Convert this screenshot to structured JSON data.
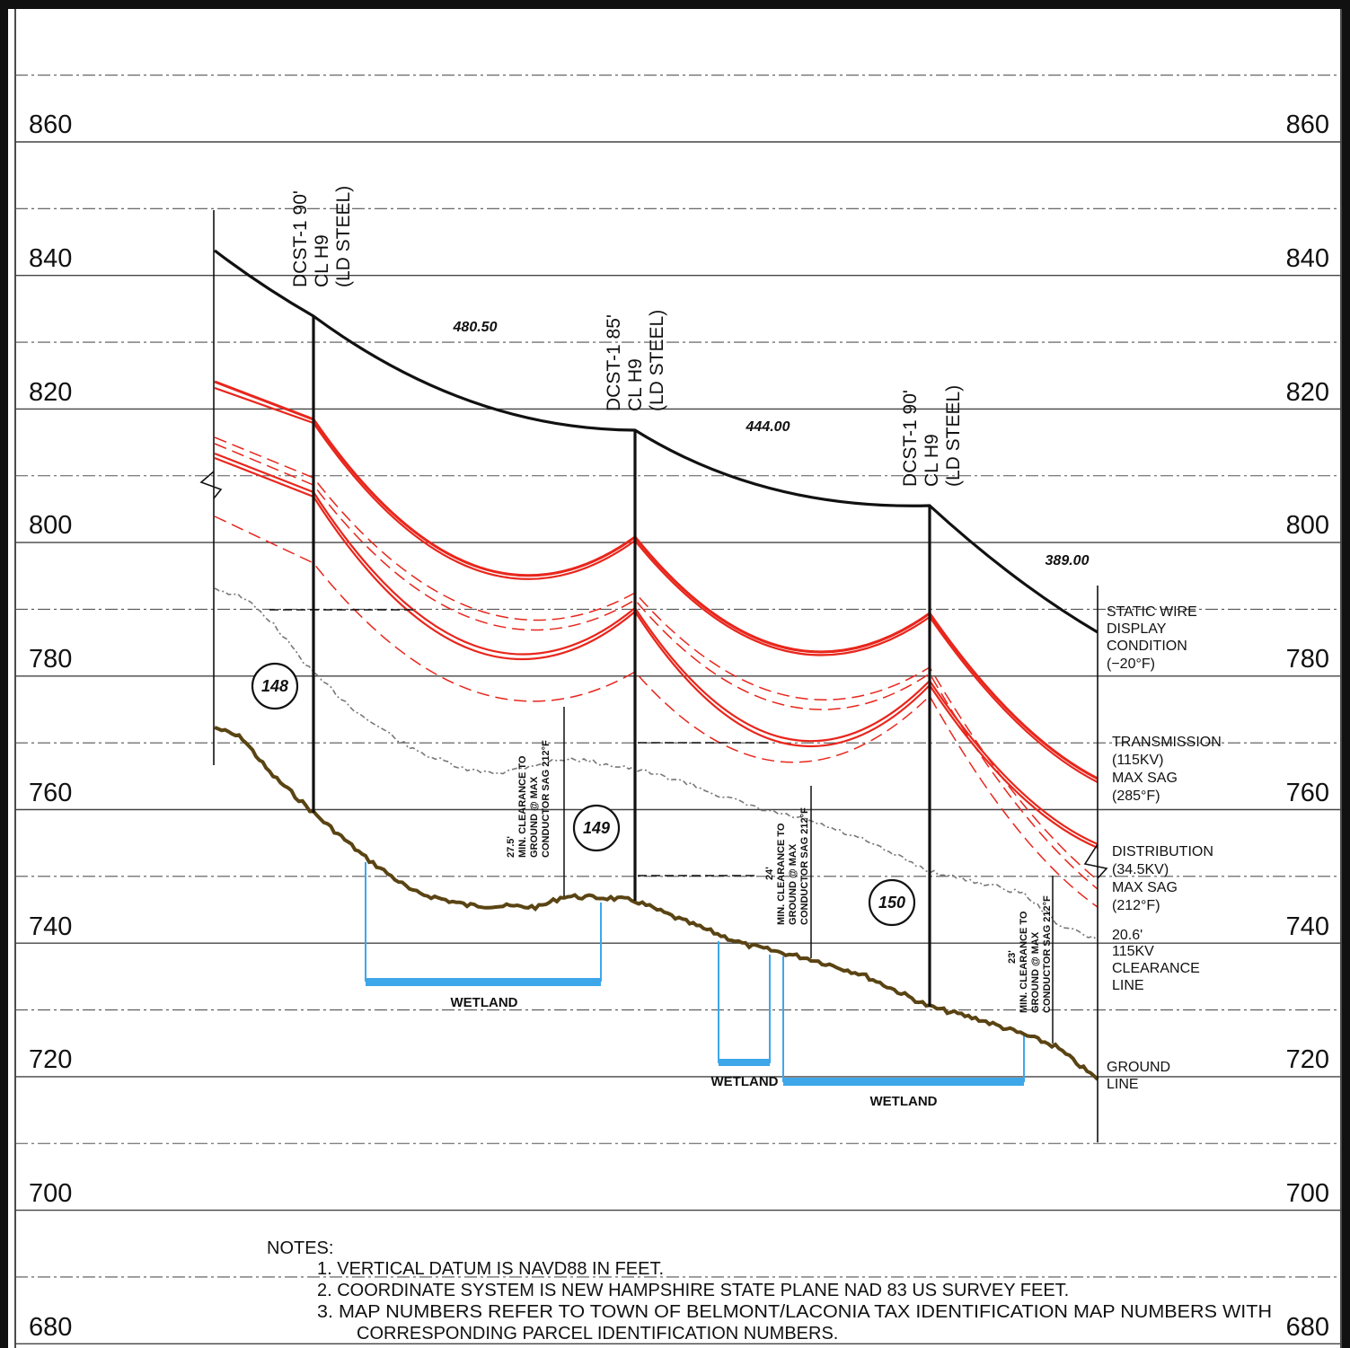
{
  "elevation_labels": [
    "860",
    "840",
    "820",
    "800",
    "780",
    "760",
    "740",
    "720",
    "700",
    "680"
  ],
  "structures": [
    {
      "line1": "DCST-1  90'",
      "line2": "CL  H9",
      "line3": "(LD  STEEL)"
    },
    {
      "line1": "DCST-1  85'",
      "line2": "CL  H9",
      "line3": "(LD  STEEL)"
    },
    {
      "line1": "DCST-1  90'",
      "line2": "CL  H9",
      "line3": "(LD  STEEL)"
    }
  ],
  "span_lengths": [
    "480.50",
    "444.00",
    "389.00"
  ],
  "map_numbers": [
    "148",
    "149",
    "150"
  ],
  "clearance_notes": [
    {
      "value": "27.5'",
      "line1": "MIN. CLEARANCE TO",
      "line2": "GROUND @ MAX",
      "line3": "CONDUCTOR SAG 212°F"
    },
    {
      "value": "24'",
      "line1": "MIN. CLEARANCE TO",
      "line2": "GROUND @ MAX",
      "line3": "CONDUCTOR SAG 212°F"
    },
    {
      "value": "23'",
      "line1": "MIN. CLEARANCE TO",
      "line2": "GROUND @ MAX",
      "line3": "CONDUCTOR SAG 212°F"
    }
  ],
  "legend": {
    "static_wire": [
      "STATIC WIRE",
      "DISPLAY",
      "CONDITION",
      "(−20°F)"
    ],
    "transmission": [
      "TRANSMISSION",
      "(115KV)",
      "MAX  SAG",
      "(285°F)"
    ],
    "distribution": [
      "DISTRIBUTION",
      "(34.5KV)",
      "MAX  SAG",
      "(212°F)"
    ],
    "clearance": [
      "20.6'",
      "115KV",
      "CLEARANCE",
      "LINE"
    ],
    "ground": [
      "GROUND",
      "LINE"
    ]
  },
  "wetland_label": "WETLAND",
  "notes": {
    "heading": "NOTES:",
    "items": [
      "1.  VERTICAL  DATUM  IS  NAVD88  IN  FEET.",
      "2.  COORDINATE  SYSTEM  IS  NEW  HAMPSHIRE  STATE  PLANE  NAD  83  US  SURVEY  FEET.",
      "3.  MAP  NUMBERS  REFER  TO  TOWN  OF  BELMONT/LACONIA  TAX  IDENTIFICATION  MAP  NUMBERS  WITH",
      "CORRESPONDING  PARCEL  IDENTIFICATION  NUMBERS."
    ]
  },
  "colors": {
    "static_wire": "#111111",
    "conductor": "#e8261c",
    "ground": "#5a4413",
    "wetland": "#3da7ea",
    "grid": "#444444",
    "clearance_line": "#777777"
  }
}
